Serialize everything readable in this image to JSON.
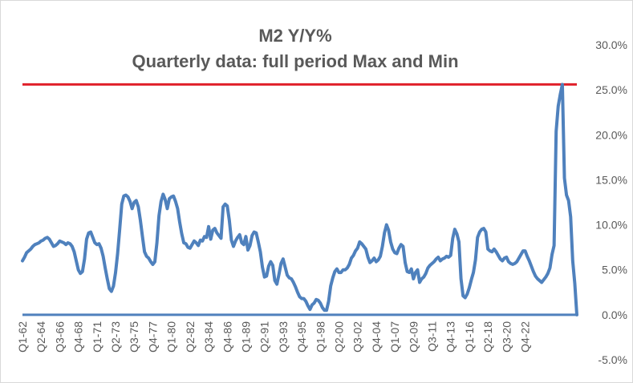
{
  "chart_data": {
    "type": "line",
    "title": "M2 Y/Y%",
    "subtitle": "Quarterly data: full period Max and Min",
    "xlabel": "",
    "ylabel": "",
    "ylim": [
      -5,
      30
    ],
    "y_ticks": [
      "30.0%",
      "25.0%",
      "20.0%",
      "15.0%",
      "10.0%",
      "5.0%",
      "0.0%",
      "-5.0%"
    ],
    "y_tick_values": [
      30,
      25,
      20,
      15,
      10,
      5,
      0,
      -5
    ],
    "x_tick_labels": [
      "Q1-62",
      "Q2-64",
      "Q3-66",
      "Q4-68",
      "Q1-71",
      "Q2-73",
      "Q3-75",
      "Q4-77",
      "Q1-80",
      "Q2-82",
      "Q3-84",
      "Q4-86",
      "Q1-89",
      "Q2-91",
      "Q3-93",
      "Q4-95",
      "Q1-98",
      "Q2-00",
      "Q3-02",
      "Q4-04",
      "Q1-07",
      "Q2-09",
      "Q3-11",
      "Q4-13",
      "Q1-16",
      "Q2-18",
      "Q3-20",
      "Q4-22"
    ],
    "x_tick_index": [
      0,
      9,
      18,
      27,
      36,
      45,
      54,
      63,
      72,
      81,
      90,
      99,
      108,
      117,
      126,
      135,
      144,
      153,
      162,
      171,
      180,
      189,
      198,
      207,
      216,
      225,
      234,
      243
    ],
    "series_color": "#4f81bd",
    "max_line": {
      "value": 25.6,
      "color": "#e0202a"
    },
    "min_line": {
      "value": 0.0,
      "color": "#4f81bd"
    },
    "series": [
      {
        "name": "",
        "values": [
          6.0,
          6.4,
          6.9,
          7.1,
          7.3,
          7.6,
          7.8,
          7.9,
          8.0,
          8.2,
          8.3,
          8.5,
          8.6,
          8.4,
          8.0,
          7.6,
          7.7,
          7.9,
          8.2,
          8.1,
          8.0,
          7.8,
          8.0,
          7.9,
          7.6,
          7.0,
          6.0,
          5.0,
          4.6,
          4.8,
          6.2,
          8.4,
          9.1,
          9.2,
          8.6,
          8.0,
          7.8,
          7.9,
          7.4,
          6.5,
          5.2,
          4.0,
          2.9,
          2.6,
          3.2,
          4.7,
          6.8,
          9.5,
          12.3,
          13.2,
          13.3,
          13.1,
          12.6,
          11.8,
          12.5,
          12.7,
          12.0,
          10.5,
          8.7,
          7.0,
          6.5,
          6.3,
          5.9,
          5.6,
          5.9,
          8.0,
          11.0,
          12.6,
          13.4,
          12.8,
          11.8,
          12.9,
          13.1,
          13.2,
          12.6,
          11.8,
          10.3,
          9.0,
          8.0,
          7.9,
          7.5,
          7.4,
          7.8,
          8.2,
          8.0,
          7.7,
          8.3,
          8.2,
          8.7,
          8.6,
          9.8,
          8.4,
          9.4,
          9.6,
          9.1,
          8.8,
          8.5,
          12.0,
          12.3,
          12.1,
          10.5,
          8.3,
          7.6,
          8.2,
          8.6,
          8.9,
          8.0,
          7.8,
          8.7,
          7.2,
          7.7,
          8.8,
          9.2,
          9.1,
          8.1,
          7.0,
          5.3,
          4.2,
          4.3,
          5.4,
          5.9,
          5.5,
          3.8,
          3.4,
          4.5,
          5.7,
          6.2,
          5.3,
          4.4,
          4.1,
          4.0,
          3.6,
          3.1,
          2.5,
          2.0,
          1.8,
          1.8,
          1.5,
          1.0,
          0.6,
          1.1,
          1.3,
          1.7,
          1.6,
          1.3,
          0.8,
          0.5,
          0.5,
          1.5,
          3.2,
          4.1,
          4.8,
          5.1,
          4.7,
          4.7,
          5.0,
          5.0,
          5.2,
          5.6,
          6.3,
          6.6,
          7.1,
          7.4,
          8.1,
          7.9,
          7.6,
          7.3,
          6.4,
          5.8,
          6.0,
          6.3,
          5.9,
          6.1,
          6.5,
          7.6,
          9.1,
          10.0,
          9.4,
          8.1,
          7.3,
          6.9,
          6.8,
          7.4,
          7.8,
          7.6,
          5.8,
          4.8,
          4.7,
          5.1,
          4.0,
          4.7,
          5.0,
          3.6,
          4.0,
          4.2,
          4.6,
          5.2,
          5.5,
          5.7,
          5.9,
          6.2,
          6.4,
          6.0,
          6.2,
          6.3,
          6.5,
          6.4,
          6.6,
          8.5,
          9.5,
          9.0,
          8.1,
          4.0,
          2.1,
          1.9,
          2.3,
          3.0,
          3.9,
          4.7,
          6.1,
          8.6,
          9.2,
          9.5,
          9.6,
          9.2,
          7.3,
          7.1,
          7.0,
          7.3,
          7.0,
          6.6,
          6.2,
          6.0,
          6.3,
          6.4,
          5.9,
          5.7,
          5.6,
          5.7,
          5.9,
          6.3,
          6.7,
          7.1,
          7.1,
          6.5,
          6.0,
          5.4,
          4.8,
          4.3,
          4.0,
          3.8,
          3.6,
          3.9,
          4.2,
          4.6,
          5.2,
          6.7,
          7.7,
          20.4,
          23.2,
          24.5,
          25.6,
          15.2,
          13.3,
          12.7,
          10.9,
          6.0,
          3.5,
          0.0
        ]
      }
    ]
  }
}
